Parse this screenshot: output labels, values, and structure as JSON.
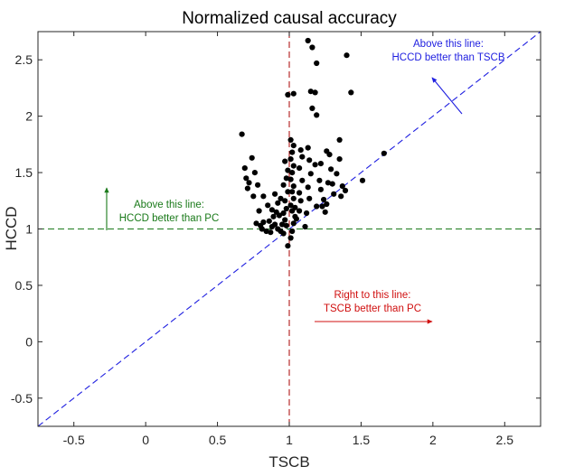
{
  "chart_data": {
    "type": "scatter",
    "title": "Normalized causal accuracy",
    "xlabel": "TSCB",
    "ylabel": "HCCD",
    "xlim": [
      -0.75,
      2.75
    ],
    "ylim": [
      -0.75,
      2.75
    ],
    "xticks": [
      -0.5,
      0,
      0.5,
      1,
      1.5,
      2,
      2.5
    ],
    "yticks": [
      -0.5,
      0,
      0.5,
      1,
      1.5,
      2,
      2.5
    ],
    "xtick_labels": [
      "-0.5",
      "0",
      "0.5",
      "1",
      "1.5",
      "2",
      "2.5"
    ],
    "ytick_labels": [
      "-0.5",
      "0",
      "0.5",
      "1",
      "1.5",
      "2",
      "2.5"
    ],
    "grid": false,
    "point_color": "#000000",
    "reference_lines": {
      "diagonal": {
        "color": "#1f1fe0",
        "from": [
          -0.75,
          -0.75
        ],
        "to": [
          2.75,
          2.75
        ]
      },
      "horizontal_y1": {
        "color": "#1a7a1a",
        "y": 1
      },
      "vertical_x1": {
        "color": "#b01818",
        "x": 1
      }
    },
    "annotations": [
      {
        "id": "blue",
        "lines": [
          "Above this line:",
          "HCCD better than TSCB"
        ],
        "color": "#1f1fe0"
      },
      {
        "id": "green",
        "lines": [
          "Above this line:",
          "HCCD better than PC"
        ],
        "color": "#1a7a1a"
      },
      {
        "id": "red",
        "lines": [
          "Right to this line:",
          "TSCB better than PC"
        ],
        "color": "#d01010"
      }
    ],
    "points": [
      [
        0.67,
        1.84
      ],
      [
        0.69,
        1.54
      ],
      [
        0.7,
        1.45
      ],
      [
        0.72,
        1.41
      ],
      [
        0.71,
        1.36
      ],
      [
        0.74,
        1.63
      ],
      [
        0.76,
        1.5
      ],
      [
        0.78,
        1.39
      ],
      [
        0.75,
        1.29
      ],
      [
        0.82,
        1.29
      ],
      [
        0.85,
        1.21
      ],
      [
        0.79,
        1.16
      ],
      [
        0.77,
        1.05
      ],
      [
        0.8,
        1.03
      ],
      [
        0.82,
        1.06
      ],
      [
        0.81,
        1.0
      ],
      [
        0.84,
        0.98
      ],
      [
        0.87,
        0.97
      ],
      [
        0.88,
        1.02
      ],
      [
        0.86,
        1.07
      ],
      [
        0.9,
        1.04
      ],
      [
        0.92,
        1.0
      ],
      [
        0.94,
        0.98
      ],
      [
        0.96,
        0.96
      ],
      [
        0.95,
        1.04
      ],
      [
        0.97,
        1.08
      ],
      [
        0.98,
        1.03
      ],
      [
        0.89,
        1.11
      ],
      [
        0.91,
        1.15
      ],
      [
        0.93,
        1.12
      ],
      [
        0.88,
        1.17
      ],
      [
        0.92,
        1.23
      ],
      [
        0.94,
        1.27
      ],
      [
        0.9,
        1.31
      ],
      [
        0.96,
        1.14
      ],
      [
        0.98,
        1.18
      ],
      [
        0.97,
        1.25
      ],
      [
        0.99,
        1.33
      ],
      [
        0.96,
        1.39
      ],
      [
        0.98,
        1.45
      ],
      [
        0.99,
        1.52
      ],
      [
        0.97,
        1.6
      ],
      [
        0.99,
        0.85
      ],
      [
        1.01,
        0.92
      ],
      [
        1.02,
        0.98
      ],
      [
        1.03,
        1.05
      ],
      [
        1.04,
        1.11
      ],
      [
        1.02,
        1.16
      ],
      [
        1.01,
        1.21
      ],
      [
        1.03,
        1.27
      ],
      [
        1.02,
        1.33
      ],
      [
        1.03,
        1.38
      ],
      [
        1.01,
        1.44
      ],
      [
        1.02,
        1.5
      ],
      [
        1.03,
        1.56
      ],
      [
        1.01,
        1.62
      ],
      [
        1.02,
        1.68
      ],
      [
        1.03,
        1.74
      ],
      [
        1.01,
        1.79
      ],
      [
        1.04,
        1.19
      ],
      [
        1.05,
        1.09
      ],
      [
        1.07,
        1.16
      ],
      [
        1.08,
        1.25
      ],
      [
        1.07,
        1.32
      ],
      [
        1.09,
        1.43
      ],
      [
        1.07,
        1.54
      ],
      [
        1.09,
        1.64
      ],
      [
        1.08,
        1.7
      ],
      [
        0.99,
        2.19
      ],
      [
        1.03,
        2.2
      ],
      [
        1.11,
        1.02
      ],
      [
        1.12,
        1.14
      ],
      [
        1.14,
        1.27
      ],
      [
        1.13,
        1.37
      ],
      [
        1.15,
        1.49
      ],
      [
        1.14,
        1.61
      ],
      [
        1.13,
        1.72
      ],
      [
        1.13,
        2.67
      ],
      [
        1.16,
        2.61
      ],
      [
        1.19,
        2.47
      ],
      [
        1.15,
        2.22
      ],
      [
        1.18,
        2.21
      ],
      [
        1.16,
        2.07
      ],
      [
        1.19,
        2.01
      ],
      [
        1.18,
        1.57
      ],
      [
        1.19,
        1.2
      ],
      [
        1.21,
        1.43
      ],
      [
        1.22,
        1.35
      ],
      [
        1.24,
        1.26
      ],
      [
        1.25,
        1.15
      ],
      [
        1.27,
        1.41
      ],
      [
        1.29,
        1.53
      ],
      [
        1.28,
        1.66
      ],
      [
        1.26,
        1.69
      ],
      [
        1.22,
        1.58
      ],
      [
        1.3,
        1.4
      ],
      [
        1.31,
        1.31
      ],
      [
        1.33,
        1.49
      ],
      [
        1.35,
        1.79
      ],
      [
        1.35,
        1.62
      ],
      [
        1.36,
        1.29
      ],
      [
        1.37,
        1.38
      ],
      [
        1.39,
        1.34
      ],
      [
        1.4,
        2.54
      ],
      [
        1.43,
        2.21
      ],
      [
        1.23,
        1.2
      ],
      [
        1.26,
        1.22
      ],
      [
        1.51,
        1.43
      ],
      [
        1.66,
        1.67
      ]
    ]
  }
}
